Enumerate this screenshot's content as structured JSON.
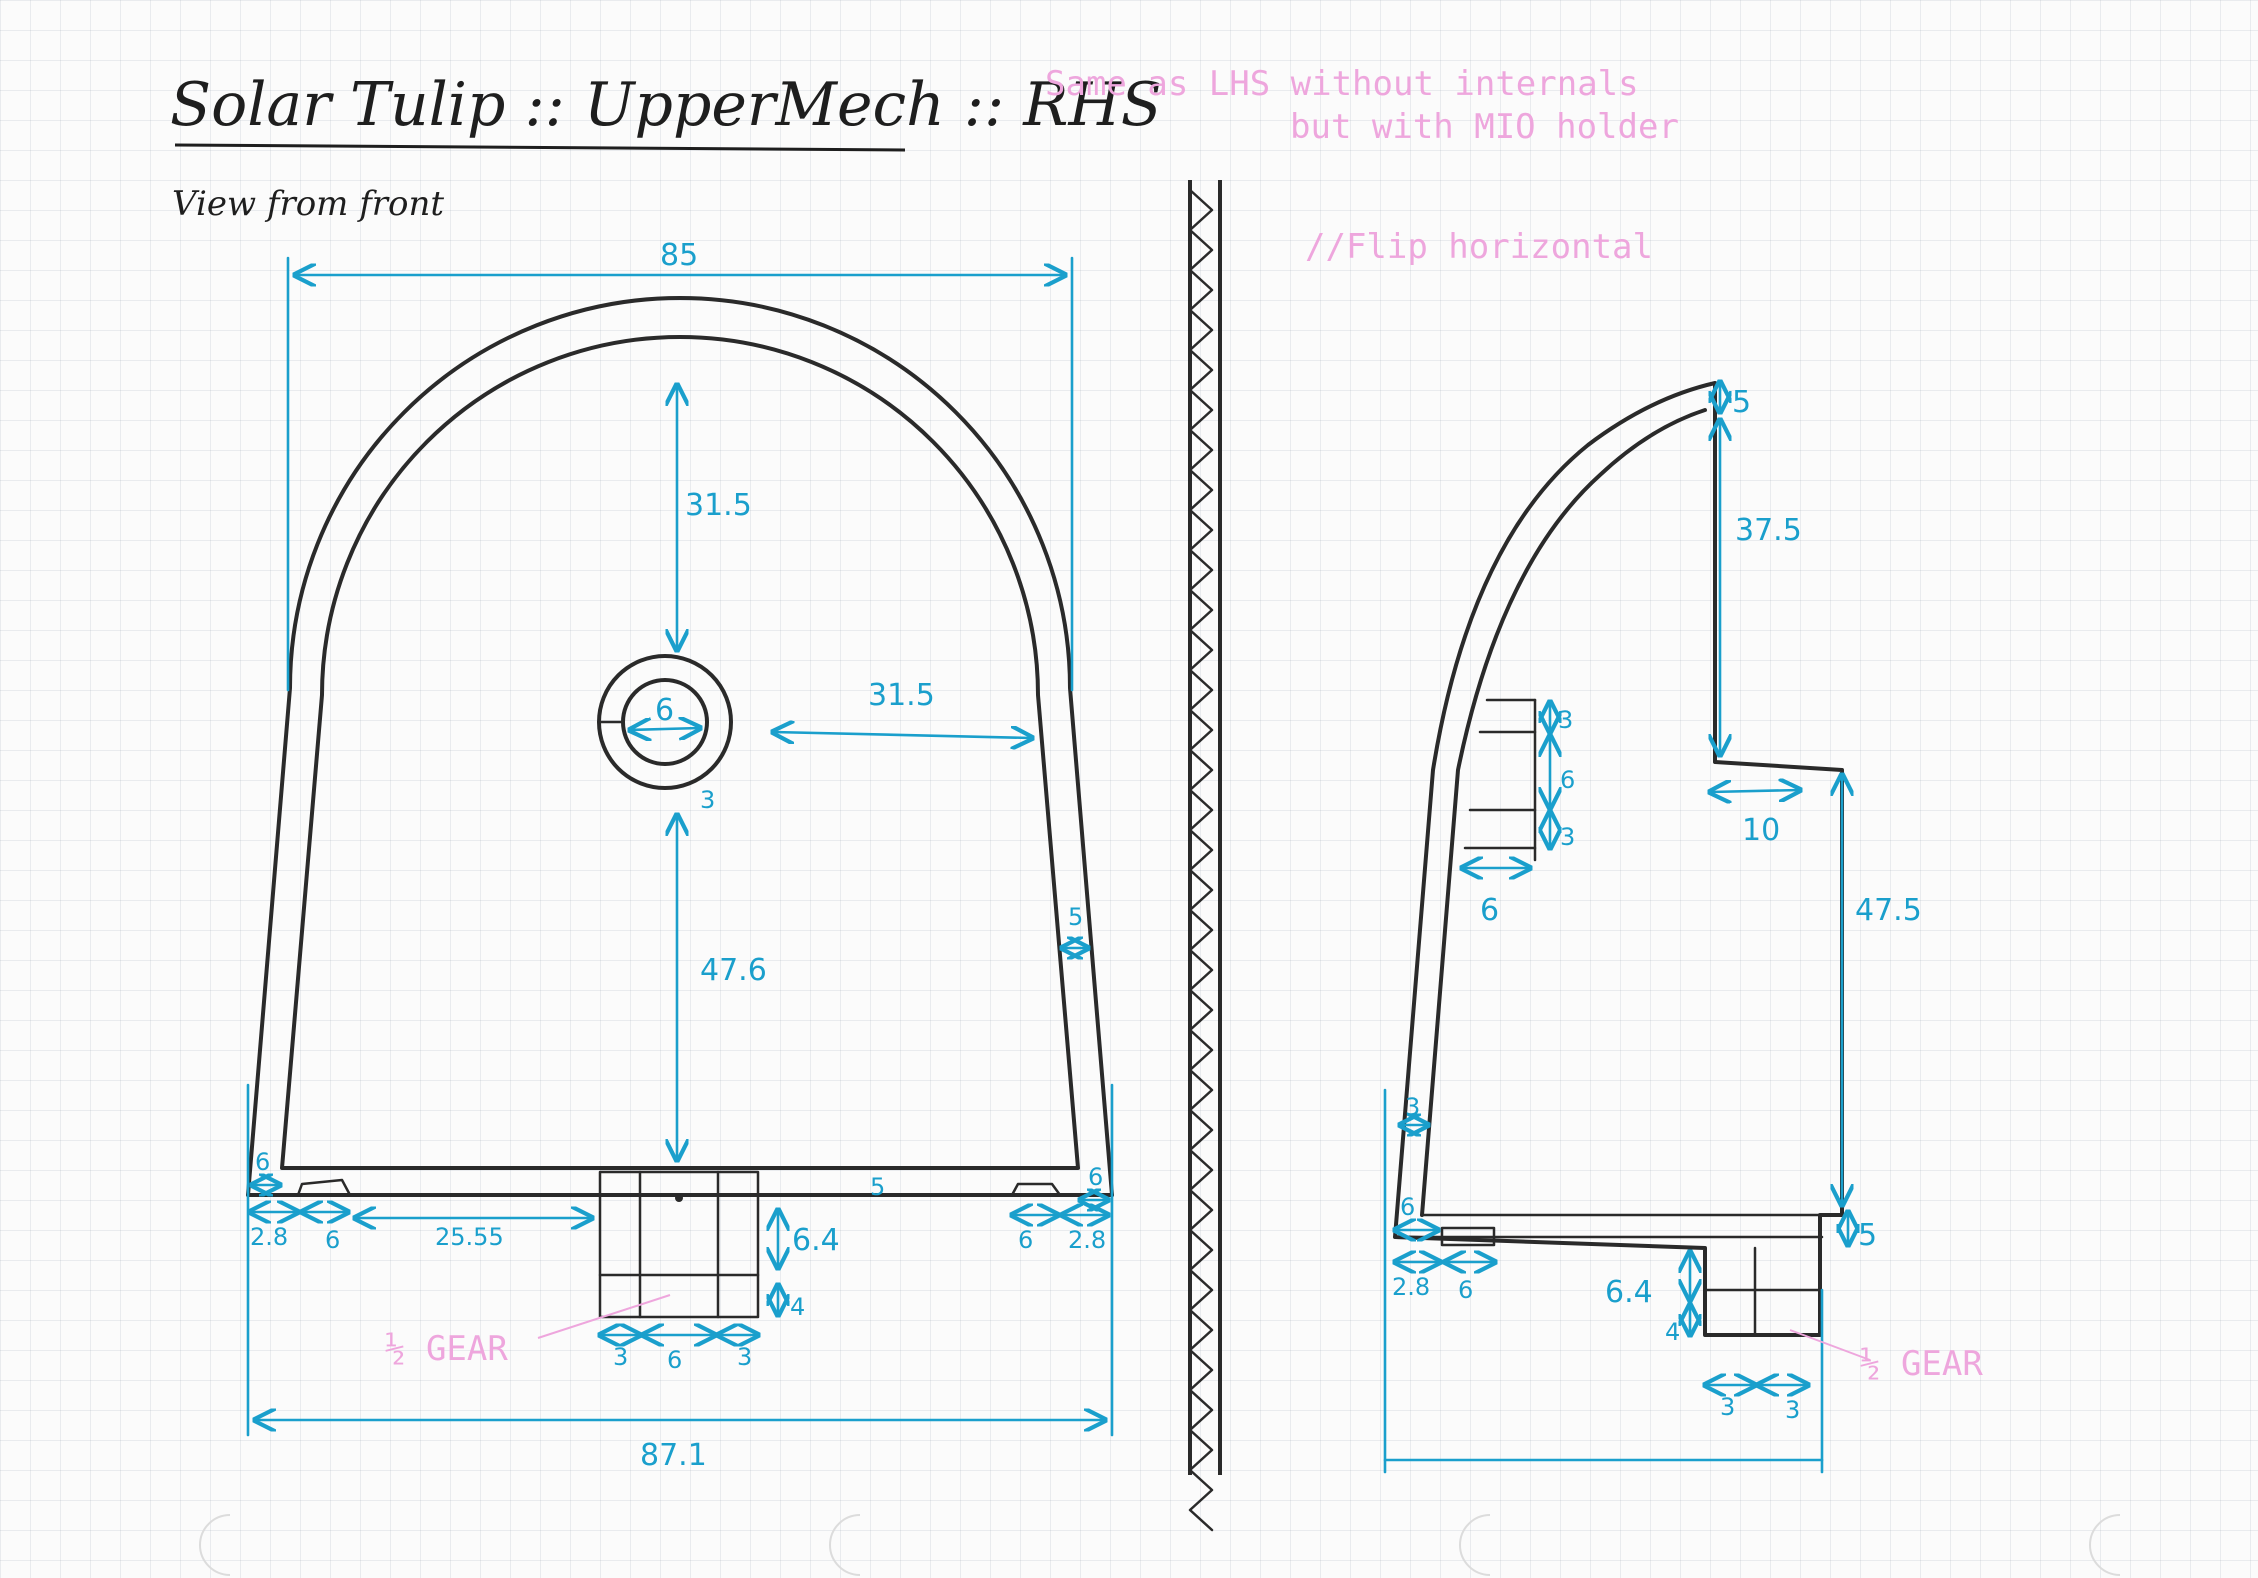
{
  "title": "Solar Tulip :: UpperMech :: RHS",
  "subtitle": "View from front",
  "notes": {
    "line1": "Same as LHS without internals",
    "line2": "but with MIO holder",
    "line3": "//Flip horizontal"
  },
  "front_view": {
    "width_top": "85",
    "width_bottom": "87.1",
    "top_to_hole": "31.5",
    "hole_to_side": "31.5",
    "hole_to_base": "47.6",
    "hole_dia": "6",
    "hole_ring": "3",
    "wall": "5",
    "base_thickness": "5",
    "left_step": "6",
    "right_step": "6",
    "left_offset": "2.8",
    "right_offset": "2.8",
    "left_slot": "6",
    "right_slot": "6",
    "center_offset": "25.55",
    "gear_height": "6.4",
    "gear_lower": "4",
    "gear_w1": "3",
    "gear_w2": "6",
    "gear_w3": "3",
    "gear_label": "½ GEAR"
  },
  "side_view": {
    "top_thickness": "5",
    "upper_height": "37.5",
    "step_width": "10",
    "lower_height": "47.5",
    "base_thickness": "5",
    "mio_top": "3",
    "mio_mid": "6",
    "mio_bottom": "3",
    "mio_depth": "6",
    "wall": "3",
    "left_step": "6",
    "left_offset": "2.8",
    "slot": "6",
    "gear_height": "6.4",
    "gear_lower": "4",
    "gear_w1": "3",
    "gear_w2": "3",
    "gear_label": "½ GEAR"
  },
  "colors": {
    "ink": "#2a2a2a",
    "dimension": "#1a9fcc",
    "note": "#eea6dd"
  }
}
